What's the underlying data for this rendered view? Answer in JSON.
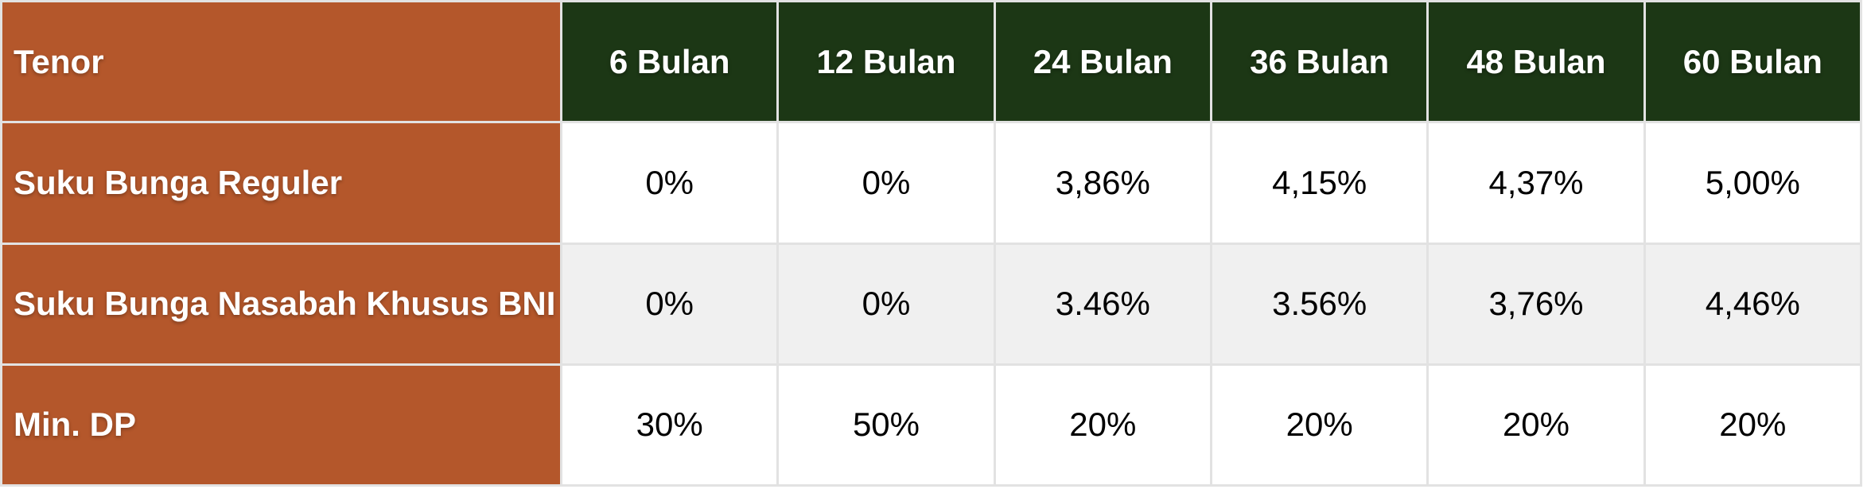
{
  "chart_data": {
    "type": "table",
    "corner_header": "Tenor",
    "column_headers": [
      "6 Bulan",
      "12 Bulan",
      "24 Bulan",
      "36 Bulan",
      "48 Bulan",
      "60 Bulan"
    ],
    "rows": [
      {
        "label": "Suku Bunga Reguler",
        "values": [
          "0%",
          "0%",
          "3,86%",
          "4,15%",
          "4,37%",
          "5,00%"
        ]
      },
      {
        "label": "Suku Bunga Nasabah Khusus BNI",
        "values": [
          "0%",
          "0%",
          "3.46%",
          "3.56%",
          "3,76%",
          "4,46%"
        ]
      },
      {
        "label": "Min. DP",
        "values": [
          "30%",
          "50%",
          "20%",
          "20%",
          "20%",
          "20%"
        ]
      }
    ]
  },
  "colors": {
    "row_header_bg": "#B4572B",
    "column_header_bg": "#1C3715",
    "alt_row_bg": "#F0F0F0",
    "row_bg": "#FFFFFF",
    "gridline": "#E2E2E2",
    "header_text": "#FFFFFF",
    "cell_text": "#000000"
  }
}
